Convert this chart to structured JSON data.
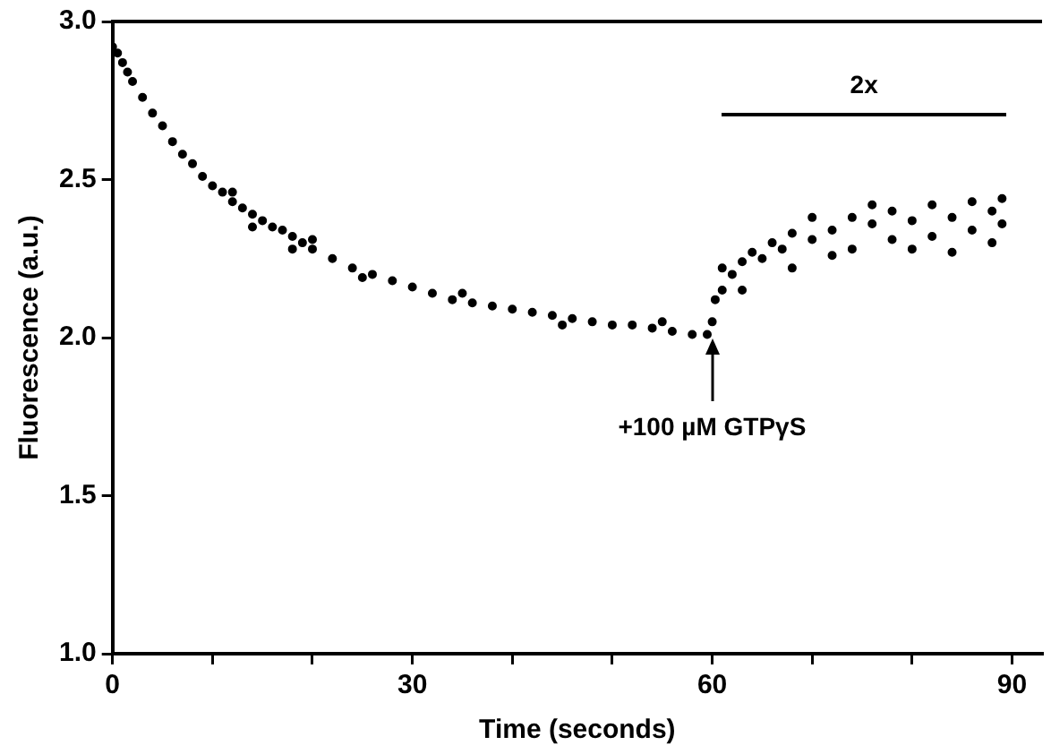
{
  "chart_data": {
    "type": "scatter",
    "xlabel": "Time (seconds)",
    "ylabel": "Fluorescence (a.u.)",
    "xlim": [
      0,
      93
    ],
    "ylim": [
      1,
      3
    ],
    "xticks": [
      0,
      {
        "value": 10,
        "label": null
      },
      {
        "value": 20,
        "label": null
      },
      30,
      {
        "value": 40,
        "label": null
      },
      {
        "value": 50,
        "label": null
      },
      60,
      {
        "value": 70,
        "label": null
      },
      {
        "value": 80,
        "label": null
      },
      90
    ],
    "yticks": [
      {
        "value": 1,
        "label": "1.0"
      },
      {
        "value": 1.5,
        "label": "1.5"
      },
      {
        "value": 2,
        "label": "2.0"
      },
      {
        "value": 2.5,
        "label": "2.5"
      },
      {
        "value": 3,
        "label": "3.0"
      }
    ],
    "grid": false,
    "legend": false,
    "marker": "circle",
    "series": [
      {
        "color": "#000000",
        "x": [
          0,
          0.5,
          1,
          1.5,
          2,
          3,
          4,
          5,
          6,
          7,
          8,
          9,
          10,
          11,
          12,
          12,
          13,
          14,
          14,
          15,
          16,
          17,
          18,
          18,
          19,
          20,
          20,
          22,
          24,
          25,
          26,
          28,
          30,
          32,
          34,
          35,
          36,
          38,
          40,
          42,
          44,
          45,
          46,
          48,
          50,
          52,
          54,
          55,
          56,
          58,
          59.5,
          60,
          60.3,
          61,
          61,
          62,
          63,
          63,
          64,
          65,
          66,
          67,
          68,
          68,
          70,
          70,
          72,
          72,
          74,
          74,
          76,
          76,
          78,
          78,
          80,
          80,
          82,
          82,
          84,
          84,
          86,
          86,
          88,
          88,
          89,
          89
        ],
        "values": [
          2.92,
          2.9,
          2.87,
          2.84,
          2.81,
          2.76,
          2.71,
          2.67,
          2.62,
          2.58,
          2.55,
          2.51,
          2.48,
          2.46,
          2.43,
          2.46,
          2.41,
          2.39,
          2.35,
          2.37,
          2.35,
          2.34,
          2.32,
          2.28,
          2.3,
          2.28,
          2.31,
          2.25,
          2.22,
          2.19,
          2.2,
          2.18,
          2.16,
          2.14,
          2.12,
          2.14,
          2.11,
          2.1,
          2.09,
          2.08,
          2.07,
          2.04,
          2.06,
          2.05,
          2.04,
          2.04,
          2.03,
          2.05,
          2.02,
          2.01,
          2.01,
          2.05,
          2.12,
          2.15,
          2.22,
          2.2,
          2.24,
          2.15,
          2.27,
          2.25,
          2.3,
          2.28,
          2.33,
          2.22,
          2.31,
          2.38,
          2.34,
          2.26,
          2.38,
          2.28,
          2.36,
          2.42,
          2.31,
          2.4,
          2.37,
          2.28,
          2.42,
          2.32,
          2.38,
          2.27,
          2.43,
          2.34,
          2.4,
          2.3,
          2.36,
          2.44
        ]
      }
    ],
    "annotations": [
      "2x",
      "+100 µM GTPγS"
    ]
  }
}
